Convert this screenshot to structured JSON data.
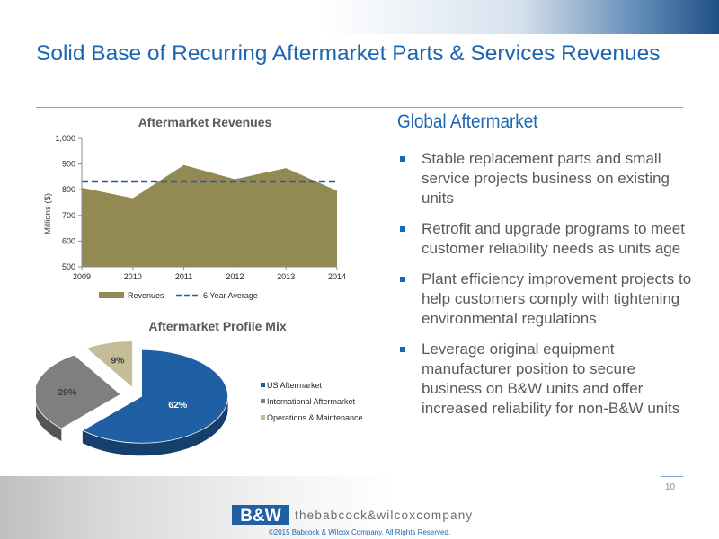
{
  "slide": {
    "title": "Solid Base of Recurring Aftermarket Parts & Services Revenues",
    "section_heading": "Global Aftermarket",
    "bullets": [
      "Stable replacement parts and small service projects business on existing units",
      "Retrofit and upgrade programs to meet customer reliability needs as units age",
      "Plant efficiency improvement projects to help customers comply with tightening environmental regulations",
      "Leverage original equipment manufacturer position to secure business on B&W units and offer increased reliability for non-B&W units"
    ],
    "page_number": "10",
    "logo_mark": "B&W",
    "logo_text": "thebabcock&wilcoxcompany",
    "copyright": "©2015 Babcock & Wilcox Company. All Rights Reserved."
  },
  "colors": {
    "title_blue": "#1b66b1",
    "area_fill": "#938953",
    "average_line": "#1f5fa3",
    "pie_us": "#1f5fa3",
    "pie_intl": "#7f7f7f",
    "pie_om": "#c4bd97"
  },
  "chart_data": [
    {
      "type": "area",
      "title": "Aftermarket Revenues",
      "ylabel": "Millions ($)",
      "xlabel": "",
      "x": [
        "2009",
        "2010",
        "2011",
        "2012",
        "2013",
        "2014"
      ],
      "ylim": [
        500,
        1000
      ],
      "yticks": [
        500,
        600,
        700,
        800,
        900,
        1000
      ],
      "ytick_labels": [
        "500",
        "600",
        "700",
        "800",
        "900",
        "1,000"
      ],
      "series": [
        {
          "name": "Revenues",
          "style": "area",
          "values": [
            808,
            767,
            896,
            841,
            884,
            796
          ]
        },
        {
          "name": "6 Year Average",
          "style": "dashed-line",
          "values": [
            832,
            832,
            832,
            832,
            832,
            832
          ]
        }
      ],
      "legend": "bottom",
      "grid": false
    },
    {
      "type": "pie",
      "title": "Aftermarket Profile Mix",
      "categories": [
        "US Aftermarket",
        "International Aftermarket",
        "Operations & Maintenance"
      ],
      "values": [
        62,
        29,
        9
      ],
      "labels": [
        "62%",
        "29%",
        "9%"
      ],
      "legend": "right",
      "style": "3d-exploded"
    }
  ]
}
